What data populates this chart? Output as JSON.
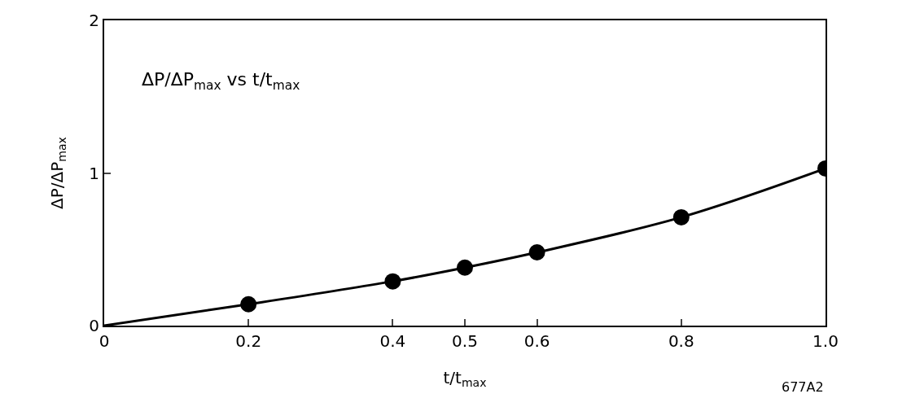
{
  "chart_data": {
    "type": "scatter",
    "xlabel": "t/t$_{max}$",
    "ylabel": "ΔP/ΔP$_{max}$",
    "annotations": [
      "ΔP/ΔP$_{max}$ vs t/t$_{max}$",
      "677A2"
    ],
    "series": [
      {
        "type": "line",
        "color": "#000000",
        "marker": "none",
        "line_style": "solid",
        "x": [
          0,
          0.2,
          0.4,
          0.5,
          0.6,
          0.8,
          1.0
        ],
        "values": [
          0,
          0.14,
          0.29,
          0.38,
          0.48,
          0.71,
          1.03
        ]
      },
      {
        "type": "scatter",
        "color": "#000000",
        "marker": "circle",
        "x": [
          0.2,
          0.4,
          0.5,
          0.6,
          0.8,
          1.0
        ],
        "values": [
          0.14,
          0.29,
          0.38,
          0.48,
          0.71,
          1.03
        ]
      }
    ],
    "xlim": [
      0,
      1.0
    ],
    "xticks": [
      0,
      0.2,
      0.4,
      0.5,
      0.6,
      0.8,
      {
        "value": 1,
        "label": "1.0"
      }
    ],
    "ylim": [
      0,
      2
    ],
    "yticks": [
      0,
      1,
      2
    ],
    "grid": false
  }
}
